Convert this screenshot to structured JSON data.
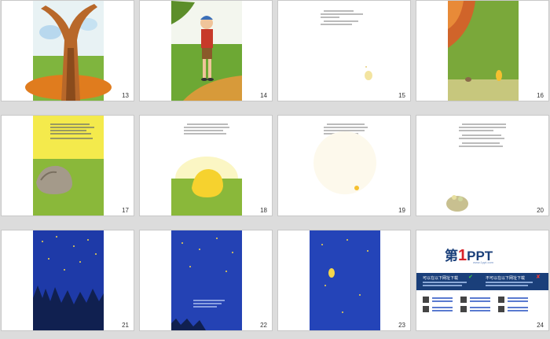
{
  "slides": [
    {
      "number": "13"
    },
    {
      "number": "14"
    },
    {
      "number": "15"
    },
    {
      "number": "16"
    },
    {
      "number": "17"
    },
    {
      "number": "18"
    },
    {
      "number": "19"
    },
    {
      "number": "20"
    },
    {
      "number": "21"
    },
    {
      "number": "22"
    },
    {
      "number": "23"
    },
    {
      "number": "24"
    }
  ],
  "brand": {
    "logo_first": "第",
    "logo_one": "1",
    "logo_ppt": "PPT",
    "subtitle": "www.1ppt.com",
    "left_heading": "可以在以下网址下载",
    "right_heading": "不可以在以下网址下载"
  },
  "colors": {
    "night_blue": "#1e3aa8",
    "brand_blue": "#1a3f7a",
    "brand_red": "#d8232a"
  }
}
